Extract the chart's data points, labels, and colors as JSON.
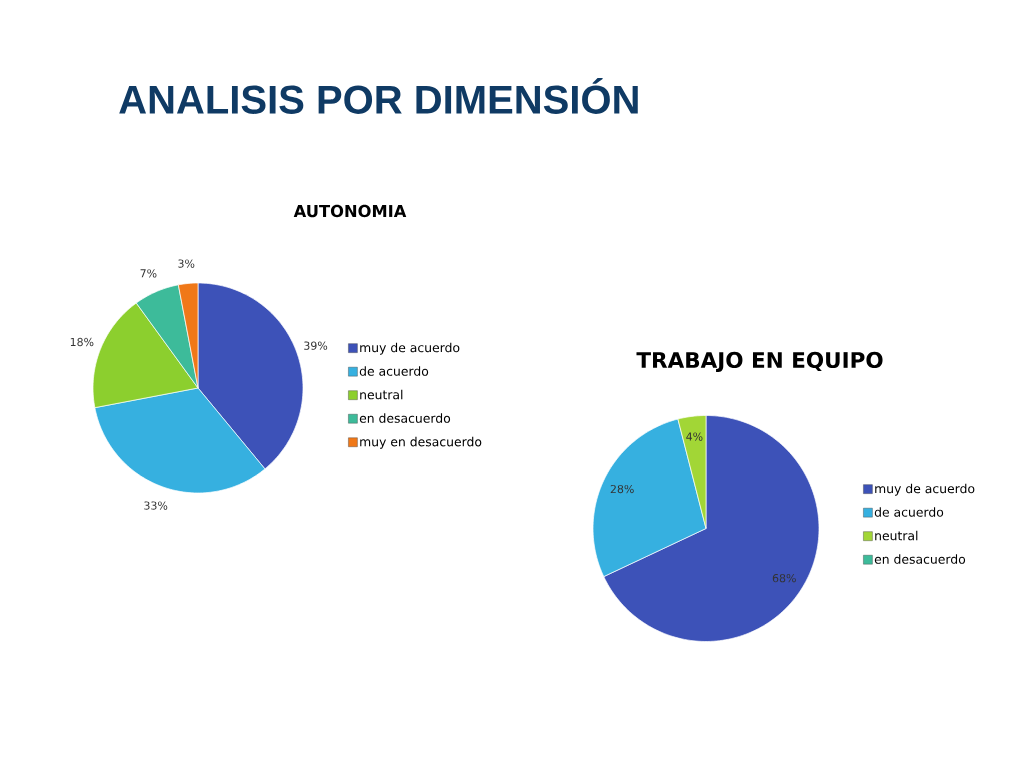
{
  "chart_data": [
    {
      "type": "pie",
      "title": "AUTONOMIA",
      "annotations": [
        "ANALISIS POR DIMENSIÓN"
      ],
      "categories": [
        "muy de acuerdo",
        "de acuerdo",
        "neutral",
        "en desacuerdo",
        "muy en desacuerdo"
      ],
      "values": [
        39,
        33,
        18,
        7,
        3
      ],
      "colors": [
        "#3d52b8",
        "#36b0e0",
        "#8ccf2e",
        "#3dbb9a",
        "#f07818"
      ],
      "value_labels": [
        "39%",
        "33%",
        "18%",
        "7%",
        "3%"
      ],
      "legend": "right"
    },
    {
      "type": "pie",
      "title": "TRABAJO EN EQUIPO",
      "categories": [
        "muy de acuerdo",
        "de acuerdo",
        "neutral",
        "en desacuerdo"
      ],
      "values": [
        68,
        28,
        4,
        0
      ],
      "colors": [
        "#3d52b8",
        "#36b0e0",
        "#a2d636",
        "#3dbb9a"
      ],
      "value_labels": [
        "68%",
        "28%",
        "4%",
        null
      ],
      "legend": "right"
    }
  ]
}
